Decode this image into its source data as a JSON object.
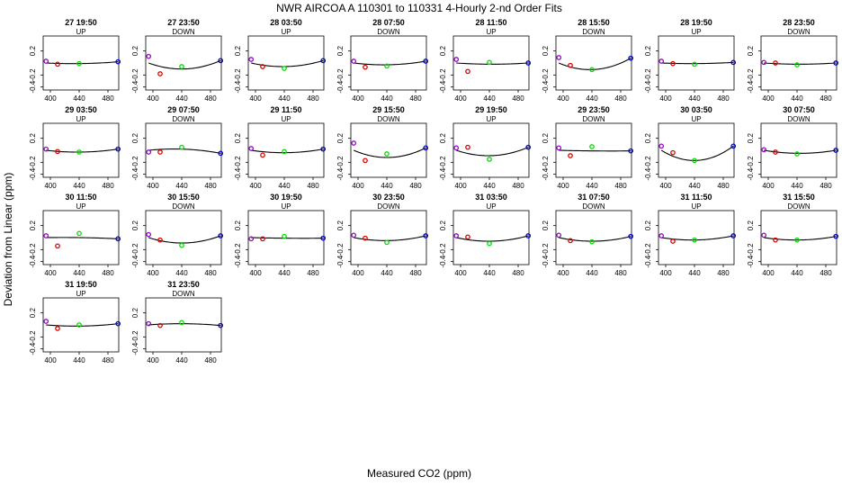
{
  "chart_data": {
    "type": "scatter",
    "title": "NWR   AIRCOA A   110301 to 110331   4-Hourly 2-nd Order Fits",
    "xlabel": "Measured CO2 (ppm)",
    "ylabel": "Deviation from Linear (ppm)",
    "xlim": [
      390,
      495
    ],
    "ylim": [
      -0.45,
      0.45
    ],
    "xticks": [
      "400",
      "440",
      "480"
    ],
    "yticks": [
      "0.2",
      "-0.2",
      "-0.4"
    ],
    "xtick_values": [
      400,
      440,
      480
    ],
    "ytick_values": [
      0.2,
      -0.2,
      -0.4
    ],
    "standard_x": [
      394,
      410,
      440,
      494
    ],
    "standard_colors": [
      "#9900cc",
      "#dd0000",
      "#00dd00",
      "#0000cc"
    ],
    "panels": [
      {
        "title": "27 19:50",
        "direction": "UP",
        "points": [
          0.03,
          -0.02,
          -0.01,
          0.02
        ],
        "curve": [
          -0.01,
          0.02
        ]
      },
      {
        "title": "27 23:50",
        "direction": "DOWN",
        "points": [
          0.11,
          -0.18,
          -0.06,
          0.04
        ],
        "curve": [
          -0.1,
          0.04
        ]
      },
      {
        "title": "28 03:50",
        "direction": "UP",
        "points": [
          0.06,
          -0.06,
          -0.09,
          0.04
        ],
        "curve": [
          -0.06,
          0.04
        ]
      },
      {
        "title": "28 07:50",
        "direction": "DOWN",
        "points": [
          0.03,
          -0.07,
          -0.05,
          0.03
        ],
        "curve": [
          -0.03,
          0.03
        ]
      },
      {
        "title": "28 11:50",
        "direction": "UP",
        "points": [
          0.06,
          -0.14,
          0.01,
          0.0
        ],
        "curve": [
          -0.02,
          0.0
        ]
      },
      {
        "title": "28 15:50",
        "direction": "DOWN",
        "points": [
          0.09,
          -0.04,
          -0.11,
          0.08
        ],
        "curve": [
          -0.11,
          0.08
        ]
      },
      {
        "title": "28 19:50",
        "direction": "UP",
        "points": [
          0.03,
          -0.01,
          -0.02,
          0.01
        ],
        "curve": [
          -0.01,
          0.01
        ]
      },
      {
        "title": "28 23:50",
        "direction": "DOWN",
        "points": [
          0.01,
          0.0,
          -0.03,
          0.0
        ],
        "curve": [
          -0.02,
          0.0
        ]
      },
      {
        "title": "29 03:50",
        "direction": "UP",
        "points": [
          0.02,
          -0.02,
          -0.03,
          0.02
        ],
        "curve": [
          -0.03,
          0.02
        ]
      },
      {
        "title": "29 07:50",
        "direction": "DOWN",
        "points": [
          -0.03,
          -0.03,
          0.05,
          -0.05
        ],
        "curve": [
          0.02,
          -0.05
        ]
      },
      {
        "title": "29 11:50",
        "direction": "UP",
        "points": [
          0.03,
          -0.08,
          -0.02,
          0.02
        ],
        "curve": [
          -0.04,
          0.02
        ]
      },
      {
        "title": "29 15:50",
        "direction": "DOWN",
        "points": [
          0.12,
          -0.17,
          -0.06,
          0.04
        ],
        "curve": [
          -0.12,
          0.04
        ]
      },
      {
        "title": "29 19:50",
        "direction": "UP",
        "points": [
          0.04,
          0.05,
          -0.15,
          0.05
        ],
        "curve": [
          -0.09,
          0.05
        ]
      },
      {
        "title": "29 23:50",
        "direction": "DOWN",
        "points": [
          0.04,
          -0.09,
          0.06,
          -0.01
        ],
        "curve": [
          -0.01,
          -0.01
        ]
      },
      {
        "title": "30 03:50",
        "direction": "UP",
        "points": [
          0.07,
          -0.04,
          -0.17,
          0.07
        ],
        "curve": [
          -0.17,
          0.07
        ]
      },
      {
        "title": "30 07:50",
        "direction": "DOWN",
        "points": [
          0.01,
          -0.03,
          -0.06,
          0.0
        ],
        "curve": [
          -0.05,
          0.0
        ]
      },
      {
        "title": "30 11:50",
        "direction": "UP",
        "points": [
          0.03,
          -0.14,
          0.07,
          -0.02
        ],
        "curve": [
          0.0,
          -0.02
        ]
      },
      {
        "title": "30 15:50",
        "direction": "DOWN",
        "points": [
          0.05,
          -0.04,
          -0.13,
          0.03
        ],
        "curve": [
          -0.09,
          0.03
        ]
      },
      {
        "title": "30 19:50",
        "direction": "UP",
        "points": [
          -0.02,
          -0.02,
          0.02,
          -0.01
        ],
        "curve": [
          -0.01,
          -0.01
        ]
      },
      {
        "title": "30 23:50",
        "direction": "DOWN",
        "points": [
          0.04,
          -0.01,
          -0.08,
          0.03
        ],
        "curve": [
          -0.05,
          0.03
        ]
      },
      {
        "title": "31 03:50",
        "direction": "UP",
        "points": [
          0.03,
          0.01,
          -0.1,
          0.03
        ],
        "curve": [
          -0.06,
          0.03
        ]
      },
      {
        "title": "31 07:50",
        "direction": "DOWN",
        "points": [
          0.04,
          -0.05,
          -0.07,
          0.02
        ],
        "curve": [
          -0.06,
          0.02
        ]
      },
      {
        "title": "31 11:50",
        "direction": "UP",
        "points": [
          0.03,
          -0.06,
          -0.04,
          0.03
        ],
        "curve": [
          -0.04,
          0.03
        ]
      },
      {
        "title": "31 15:50",
        "direction": "DOWN",
        "points": [
          0.04,
          -0.04,
          -0.04,
          0.02
        ],
        "curve": [
          -0.04,
          0.02
        ]
      },
      {
        "title": "31 19:50",
        "direction": "UP",
        "points": [
          0.06,
          -0.06,
          0.0,
          0.02
        ],
        "curve": [
          -0.02,
          0.02
        ]
      },
      {
        "title": "31 23:50",
        "direction": "DOWN",
        "points": [
          0.02,
          -0.01,
          0.04,
          -0.01
        ],
        "curve": [
          0.02,
          -0.01
        ]
      }
    ]
  }
}
